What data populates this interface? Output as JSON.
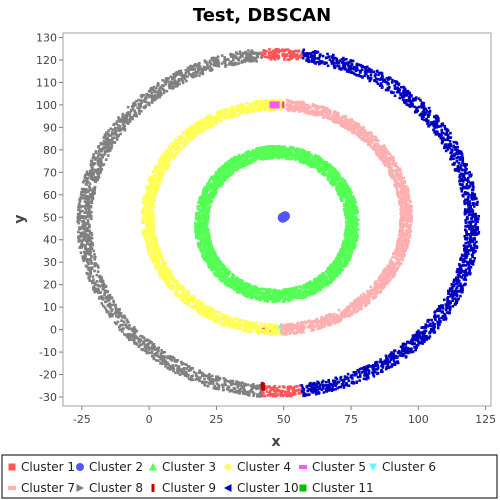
{
  "chart_data": {
    "type": "scatter",
    "title": "Test, DBSCAN",
    "xlabel": "x",
    "ylabel": "y",
    "xlim": [
      -32,
      127
    ],
    "ylim": [
      -34,
      132
    ],
    "xticks": [
      -25,
      0,
      25,
      50,
      75,
      100,
      125
    ],
    "yticks": [
      -30,
      -20,
      -10,
      0,
      10,
      20,
      30,
      40,
      50,
      60,
      70,
      80,
      90,
      100,
      110,
      120,
      130
    ],
    "grid": false,
    "legend_position": "bottom",
    "series": [
      {
        "name": "Cluster 1",
        "color": "#ff5555",
        "marker": "square",
        "arcs": [
          {
            "cx": 48,
            "cy": 47.5,
            "rx": 72,
            "ry": 75,
            "from": 83,
            "to": 95,
            "w": 2.2
          },
          {
            "cx": 48,
            "cy": 47.5,
            "rx": 72,
            "ry": 75,
            "from": 265,
            "to": 277,
            "w": 2.2
          }
        ],
        "points": [
          [
            42,
            100
          ],
          [
            49,
            100
          ],
          [
            43,
            0
          ],
          [
            46,
            0
          ]
        ]
      },
      {
        "name": "Cluster 2",
        "color": "#5555ff",
        "marker": "circle",
        "points": [
          [
            50,
            50
          ],
          [
            50.5,
            50.5
          ],
          [
            49.6,
            49.8
          ]
        ]
      },
      {
        "name": "Cluster 3",
        "color": "#55ff55",
        "marker": "triangle-up",
        "arcs": [
          {
            "cx": 47.5,
            "cy": 47,
            "rx": 28,
            "ry": 32,
            "from": 0,
            "to": 360,
            "w": 2.4
          }
        ]
      },
      {
        "name": "Cluster 4",
        "color": "#ffff55",
        "marker": "diamond",
        "arcs": [
          {
            "cx": 47.5,
            "cy": 50,
            "rx": 48,
            "ry": 50,
            "from": 88,
            "to": 272,
            "w": 2.2
          }
        ]
      },
      {
        "name": "Cluster 5",
        "color": "#ff55ff",
        "marker": "square-h",
        "points": [
          [
            46,
            100
          ],
          [
            47.2,
            100
          ]
        ]
      },
      {
        "name": "Cluster 6",
        "color": "#55ffff",
        "marker": "triangle-down",
        "points": [
          [
            49,
            0.5
          ]
        ]
      },
      {
        "name": "Cluster 7",
        "color": "#ffafaf",
        "marker": "square-h",
        "arcs": [
          {
            "cx": 47.5,
            "cy": 50,
            "rx": 48,
            "ry": 50,
            "from": -88,
            "to": 86,
            "w": 2.2
          }
        ]
      },
      {
        "name": "Cluster 8",
        "color": "#808080",
        "marker": "triangle-right",
        "arcs": [
          {
            "cx": 48,
            "cy": 47.5,
            "rx": 72,
            "ry": 75,
            "from": 95,
            "to": 265,
            "w": 2.6
          }
        ]
      },
      {
        "name": "Cluster 9",
        "color": "#c00000",
        "marker": "rect-v",
        "points": [
          [
            42,
            -25
          ],
          [
            42.5,
            -25.5
          ]
        ]
      },
      {
        "name": "Cluster 10",
        "color": "#0000c0",
        "marker": "triangle-left",
        "arcs": [
          {
            "cx": 48,
            "cy": 47.5,
            "rx": 72,
            "ry": 75,
            "from": -83,
            "to": 83,
            "w": 2.6
          }
        ]
      },
      {
        "name": "Cluster 11",
        "color": "#00c000",
        "marker": "square",
        "points": []
      }
    ]
  }
}
